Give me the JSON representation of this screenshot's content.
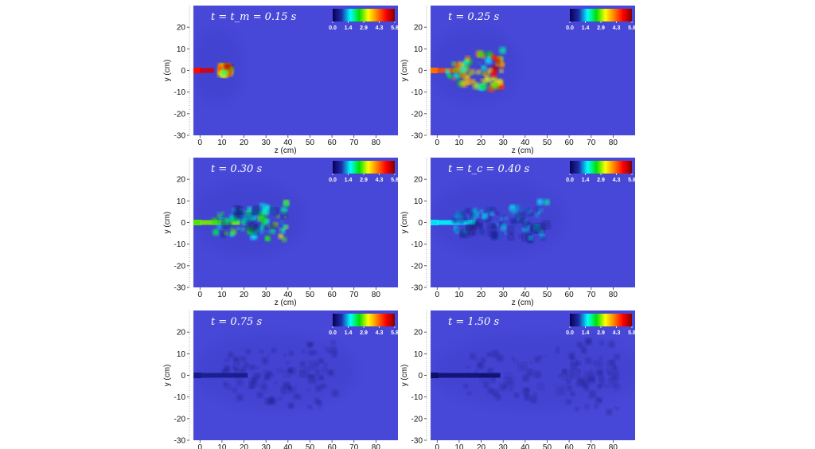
{
  "chart_data": {
    "type": "heatmap",
    "grid": false,
    "xlabel": "z (cm)",
    "ylabel": "y (cm)",
    "xlim": [
      -3,
      90
    ],
    "ylim": [
      -30,
      30
    ],
    "xticks": [
      "0",
      "10",
      "20",
      "30",
      "40",
      "50",
      "60",
      "70",
      "80"
    ],
    "yticks": [
      "20",
      "10",
      "0",
      "-10",
      "-20",
      "-30"
    ],
    "colorbar": {
      "ticks": [
        "0.0",
        "1.4",
        "2.9",
        "4.3",
        "5.8"
      ],
      "range": [
        0.0,
        5.8
      ],
      "placement": "top-right",
      "colors": [
        "#0a0050",
        "#1d2ca8",
        "#00ffff",
        "#00e000",
        "#ffff00",
        "#ff8000",
        "#ff0000",
        "#800000"
      ]
    },
    "background_color": "#4848d8",
    "panels": [
      {
        "label": "t = t_m = 0.15 s",
        "time_s": 0.15,
        "cloud_extent_z_cm": 14,
        "intensity": 5.8
      },
      {
        "label": "t = 0.25 s",
        "time_s": 0.25,
        "cloud_extent_z_cm": 30,
        "intensity": 5.0
      },
      {
        "label": "t = 0.30 s",
        "time_s": 0.3,
        "cloud_extent_z_cm": 40,
        "intensity": 3.2
      },
      {
        "label": "t = t_c = 0.40 s",
        "time_s": 0.4,
        "cloud_extent_z_cm": 50,
        "intensity": 1.8
      },
      {
        "label": "t = 0.75 s",
        "time_s": 0.75,
        "cloud_extent_z_cm": 62,
        "intensity": 0.6
      },
      {
        "label": "t = 1.50 s",
        "time_s": 1.5,
        "cloud_extent_z_cm": 82,
        "intensity": 0.3
      }
    ]
  }
}
